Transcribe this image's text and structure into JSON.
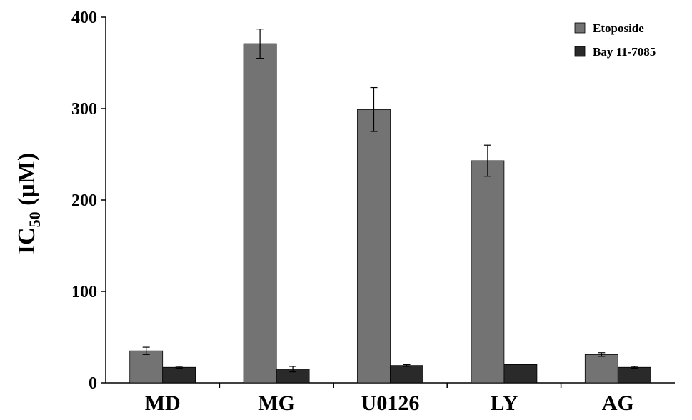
{
  "chart_data": {
    "type": "bar",
    "categories": [
      "MD",
      "MG",
      "U0126",
      "LY",
      "AG"
    ],
    "series": [
      {
        "name": "Etoposide",
        "values": [
          35,
          371,
          299,
          243,
          31
        ],
        "errors": [
          4,
          16,
          24,
          17,
          2
        ],
        "color": "#737373"
      },
      {
        "name": "Bay 11-7085",
        "values": [
          17,
          15,
          19,
          20,
          17
        ],
        "errors": [
          1,
          3,
          1,
          0,
          1
        ],
        "color": "#2a2a2a"
      }
    ],
    "title": "",
    "xlabel": "",
    "ylabel_main": "IC",
    "ylabel_sub": "50",
    "ylabel_unit": " (μM)",
    "ylim": [
      0,
      400
    ],
    "yticks": [
      "0",
      "100",
      "200",
      "300",
      "400"
    ],
    "grid": false,
    "legend_position": "top-right"
  }
}
